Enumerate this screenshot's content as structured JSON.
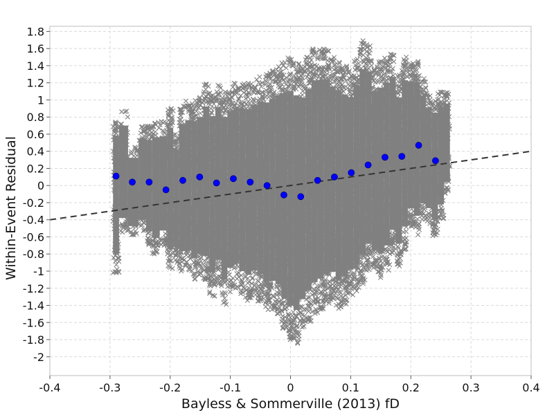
{
  "chart_data": {
    "type": "scatter",
    "xlabel": "Bayless & Sommerville (2013) fD",
    "ylabel": "Within-Event Residual",
    "xlim": [
      -0.4,
      0.4
    ],
    "ylim": [
      -2.22,
      1.86
    ],
    "x_ticks": [
      -0.4,
      -0.3,
      -0.2,
      -0.1,
      0,
      0.1,
      0.2,
      0.3,
      0.4
    ],
    "x_tick_labels": [
      "-0.4",
      "-0.3",
      "-0.2",
      "-0.1",
      "0",
      "0.1",
      "0.2",
      "0.3",
      "0.4"
    ],
    "y_ticks": [
      1.8,
      1.6,
      1.4,
      1.2,
      1,
      0.8,
      0.6,
      0.4,
      0.2,
      0,
      -0.2,
      -0.4,
      -0.6,
      -0.8,
      -1,
      -1.2,
      -1.4,
      -1.6,
      -1.8,
      -2
    ],
    "y_tick_labels": [
      "1.8",
      "1.6",
      "1.4",
      "1.2",
      "1",
      "0.8",
      "0.6",
      "0.4",
      "0.2",
      "0",
      "-0.2",
      "-0.4",
      "-0.6",
      "-0.8",
      "-1",
      "-1.2",
      "-1.4",
      "-1.6",
      "-1.8",
      "-2"
    ],
    "grid": true,
    "colors": {
      "residuals": "#808080",
      "binned_means": "#0000ff",
      "trend_line": "#333333",
      "grid": "#d9d9d9",
      "plot_border": "#bdbdbd"
    },
    "series": [
      {
        "marker": "x",
        "columns": [
          {
            "x": -0.29,
            "lo": -1.02,
            "hi": 0.8
          },
          {
            "x": -0.28,
            "lo": -0.55,
            "hi": 0.87
          },
          {
            "x": -0.26,
            "lo": -0.6,
            "hi": 0.45
          },
          {
            "x": -0.245,
            "lo": -0.55,
            "hi": 0.7
          },
          {
            "x": -0.235,
            "lo": -0.7,
            "hi": 0.7
          },
          {
            "x": -0.225,
            "lo": -0.8,
            "hi": 0.75
          },
          {
            "x": -0.21,
            "lo": -0.7,
            "hi": 0.75
          },
          {
            "x": -0.2,
            "lo": -0.97,
            "hi": 0.9
          },
          {
            "x": -0.19,
            "lo": -0.9,
            "hi": 0.6
          },
          {
            "x": -0.18,
            "lo": -1.0,
            "hi": 0.95
          },
          {
            "x": -0.17,
            "lo": -1.0,
            "hi": 1.0
          },
          {
            "x": -0.16,
            "lo": -1.1,
            "hi": 1.0
          },
          {
            "x": -0.15,
            "lo": -1.05,
            "hi": 1.05
          },
          {
            "x": -0.14,
            "lo": -1.1,
            "hi": 1.2
          },
          {
            "x": -0.13,
            "lo": -1.3,
            "hi": 1.1
          },
          {
            "x": -0.12,
            "lo": -1.15,
            "hi": 1.2
          },
          {
            "x": -0.11,
            "lo": -1.4,
            "hi": 1.1
          },
          {
            "x": -0.1,
            "lo": -1.25,
            "hi": 1.15
          },
          {
            "x": -0.09,
            "lo": -1.2,
            "hi": 1.2
          },
          {
            "x": -0.08,
            "lo": -1.3,
            "hi": 1.2
          },
          {
            "x": -0.07,
            "lo": -1.35,
            "hi": 1.2
          },
          {
            "x": -0.06,
            "lo": -1.3,
            "hi": 1.25
          },
          {
            "x": -0.05,
            "lo": -1.35,
            "hi": 1.3
          },
          {
            "x": -0.04,
            "lo": -1.45,
            "hi": 1.3
          },
          {
            "x": -0.03,
            "lo": -1.45,
            "hi": 1.35
          },
          {
            "x": -0.02,
            "lo": -1.5,
            "hi": 1.4
          },
          {
            "x": -0.01,
            "lo": -1.7,
            "hi": 1.45
          },
          {
            "x": 0.0,
            "lo": -1.8,
            "hi": 1.5
          },
          {
            "x": 0.01,
            "lo": -1.85,
            "hi": 1.45
          },
          {
            "x": 0.02,
            "lo": -1.7,
            "hi": 1.4
          },
          {
            "x": 0.03,
            "lo": -1.6,
            "hi": 1.5
          },
          {
            "x": 0.04,
            "lo": -1.5,
            "hi": 1.6
          },
          {
            "x": 0.05,
            "lo": -1.45,
            "hi": 1.6
          },
          {
            "x": 0.06,
            "lo": -1.4,
            "hi": 1.6
          },
          {
            "x": 0.07,
            "lo": -1.35,
            "hi": 1.5
          },
          {
            "x": 0.08,
            "lo": -1.45,
            "hi": 1.45
          },
          {
            "x": 0.09,
            "lo": -1.4,
            "hi": 1.4
          },
          {
            "x": 0.1,
            "lo": -1.3,
            "hi": 1.35
          },
          {
            "x": 0.11,
            "lo": -1.25,
            "hi": 1.5
          },
          {
            "x": 0.12,
            "lo": -1.15,
            "hi": 1.7
          },
          {
            "x": 0.13,
            "lo": -1.0,
            "hi": 1.65
          },
          {
            "x": 0.14,
            "lo": -1.05,
            "hi": 1.4
          },
          {
            "x": 0.15,
            "lo": -1.1,
            "hi": 1.45
          },
          {
            "x": 0.16,
            "lo": -1.0,
            "hi": 1.5
          },
          {
            "x": 0.17,
            "lo": -0.8,
            "hi": 1.55
          },
          {
            "x": 0.18,
            "lo": -0.95,
            "hi": 1.3
          },
          {
            "x": 0.19,
            "lo": -0.75,
            "hi": 1.5
          },
          {
            "x": 0.2,
            "lo": -0.5,
            "hi": 1.45
          },
          {
            "x": 0.21,
            "lo": -0.6,
            "hi": 1.45
          },
          {
            "x": 0.22,
            "lo": -0.4,
            "hi": 1.25
          },
          {
            "x": 0.23,
            "lo": -0.45,
            "hi": 1.1
          },
          {
            "x": 0.24,
            "lo": -0.6,
            "hi": 1.05
          },
          {
            "x": 0.25,
            "lo": -0.4,
            "hi": 1.1
          },
          {
            "x": 0.26,
            "lo": -0.1,
            "hi": 1.1
          }
        ]
      },
      {
        "marker": "circle",
        "x": [
          -0.29,
          -0.263,
          -0.235,
          -0.207,
          -0.179,
          -0.151,
          -0.123,
          -0.095,
          -0.067,
          -0.039,
          -0.011,
          0.017,
          0.045,
          0.073,
          0.101,
          0.129,
          0.157,
          0.185,
          0.213,
          0.241
        ],
        "y": [
          0.11,
          0.04,
          0.04,
          -0.05,
          0.06,
          0.1,
          0.03,
          0.08,
          0.04,
          0.0,
          -0.11,
          -0.13,
          0.06,
          0.1,
          0.15,
          0.24,
          0.33,
          0.34,
          0.47,
          0.29
        ]
      },
      {
        "line": "dashed",
        "x": [
          -0.4,
          0.4
        ],
        "y": [
          -0.4,
          0.4
        ]
      }
    ]
  }
}
